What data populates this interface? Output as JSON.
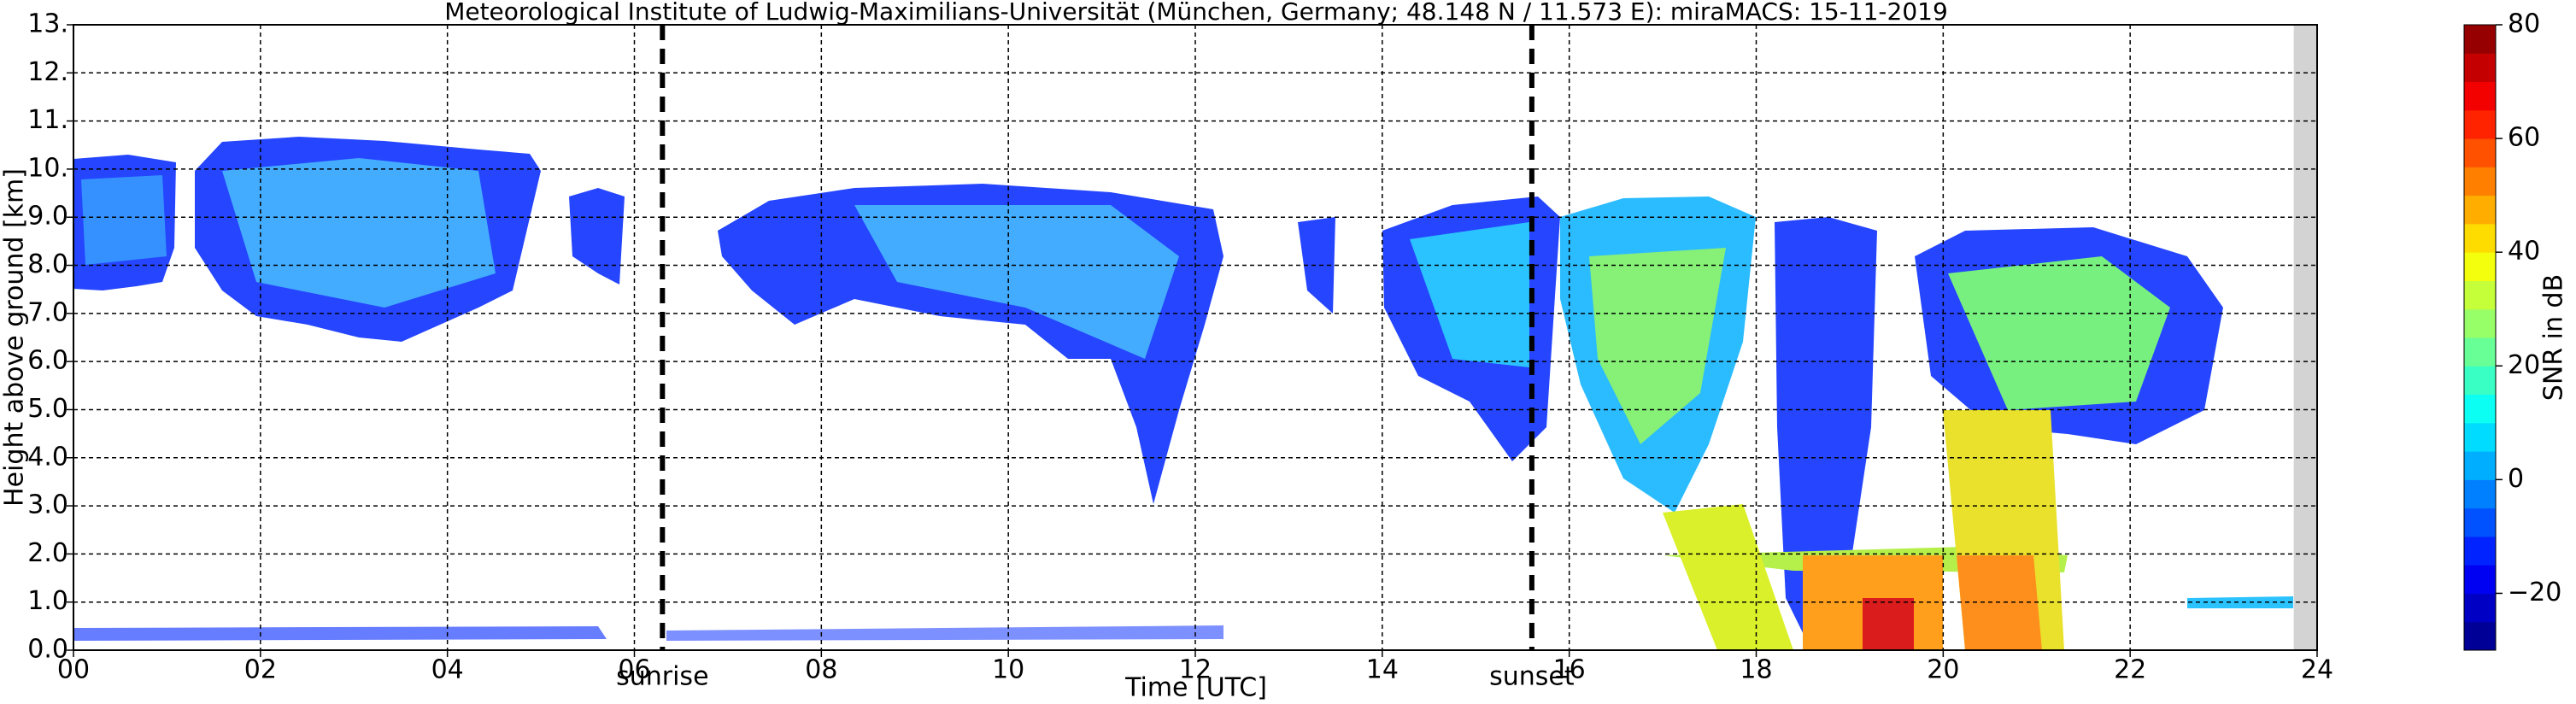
{
  "chart_data": {
    "type": "time-height",
    "title": "Meteorological Institute of Ludwig-Maximilians-Universität (München, Germany; 48.148 N / 11.573 E):    miraMACS: 15-11-2019",
    "xlabel": "Time [UTC]",
    "ylabel": "Height above ground [km]",
    "xlim": [
      0,
      24
    ],
    "xticks": [
      {
        "value": 0,
        "label": "00"
      },
      {
        "value": 2,
        "label": "02"
      },
      {
        "value": 4,
        "label": "04"
      },
      {
        "value": 6,
        "label": "06"
      },
      {
        "value": 8,
        "label": "08"
      },
      10,
      12,
      14,
      16,
      18,
      20,
      22,
      24
    ],
    "ylim": [
      0,
      13
    ],
    "yticks": [
      {
        "value": 0,
        "label": "0.0"
      },
      {
        "value": 1,
        "label": "1.0"
      },
      {
        "value": 2,
        "label": "2.0"
      },
      {
        "value": 3,
        "label": "3.0"
      },
      {
        "value": 4,
        "label": "4.0"
      },
      {
        "value": 5,
        "label": "5.0"
      },
      {
        "value": 6,
        "label": "6.0"
      },
      {
        "value": 7,
        "label": "7.0"
      },
      {
        "value": 8,
        "label": "8.0"
      },
      {
        "value": 9,
        "label": "9.0"
      },
      {
        "value": 10,
        "label": "10."
      },
      {
        "value": 11,
        "label": "11."
      },
      {
        "value": 12,
        "label": "12."
      },
      {
        "value": 13,
        "label": "13."
      }
    ],
    "grid": true,
    "markers": [
      {
        "label": "sunrise",
        "x": 6.3
      },
      {
        "label": "sunset",
        "x": 15.6
      }
    ],
    "no_data_x": [
      23.75,
      24
    ],
    "colorbar": {
      "label": "SNR in dB",
      "lim": [
        -30,
        80
      ],
      "ticks": [
        {
          "value": -20,
          "label": "−20"
        },
        0,
        20,
        40,
        60,
        80
      ]
    }
  }
}
